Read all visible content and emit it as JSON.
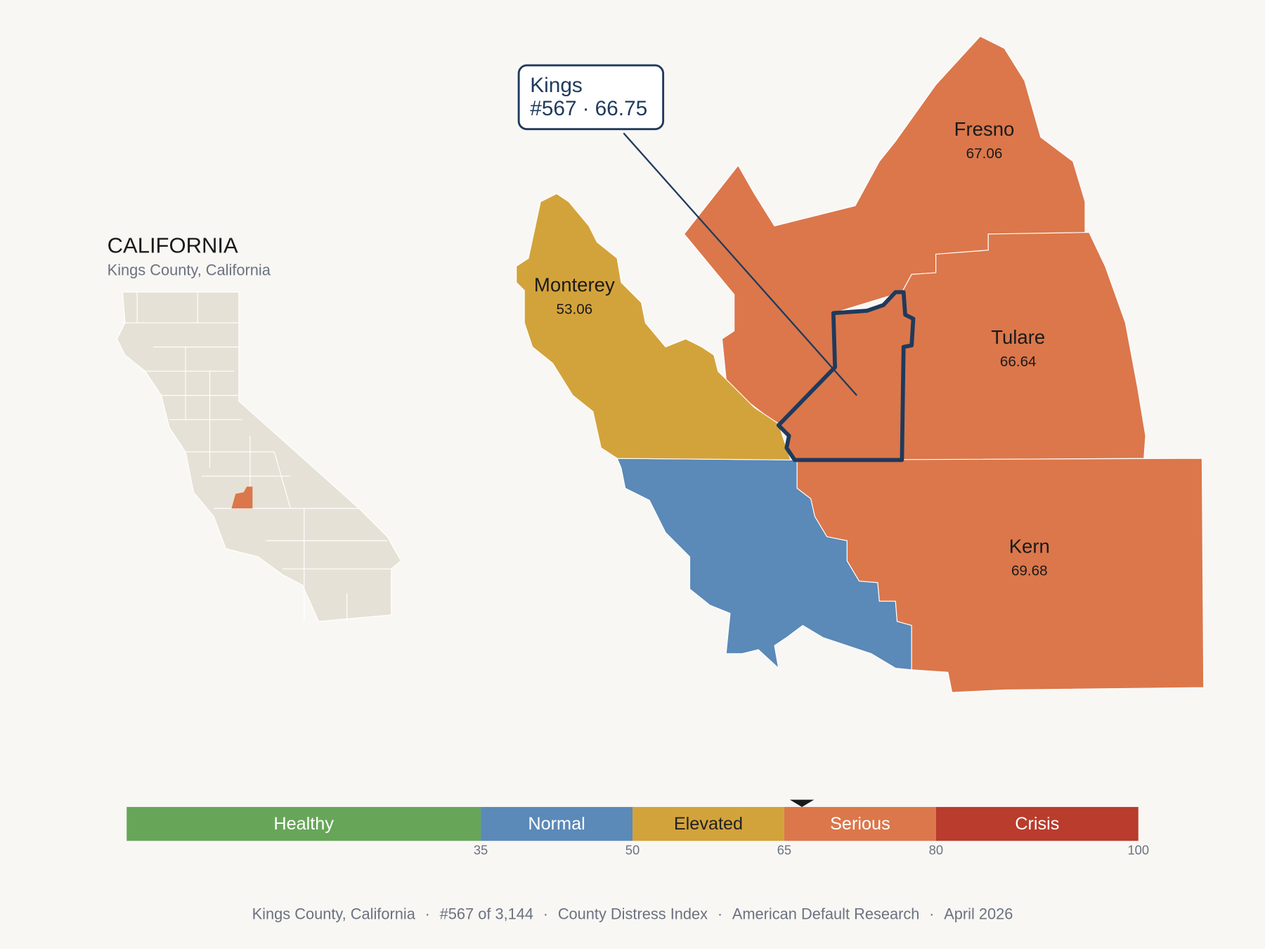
{
  "inset": {
    "title": "CALIFORNIA",
    "subtitle": "Kings County, California"
  },
  "counties": [
    {
      "name": "Fresno",
      "value": 67.06
    },
    {
      "name": "Tulare",
      "value": 66.64
    },
    {
      "name": "Kern",
      "value": 69.68
    },
    {
      "name": "Monterey",
      "value": 53.06
    }
  ],
  "selected": {
    "name": "Kings",
    "rank": "#567",
    "separator": "·",
    "value": 66.75,
    "outline_color": "#1f3a5c"
  },
  "legend": {
    "lim": [
      0,
      100
    ],
    "ticks": [
      35,
      50,
      65,
      80,
      100
    ],
    "bands": [
      {
        "label": "Healthy",
        "color": "#67a659",
        "text_color": "#ffffff"
      },
      {
        "label": "Normal",
        "color": "#5b89b8",
        "text_color": "#ffffff"
      },
      {
        "label": "Elevated",
        "color": "#d3a33b",
        "text_color": "#222222"
      },
      {
        "label": "Serious",
        "color": "#db774b",
        "text_color": "#ffffff"
      },
      {
        "label": "Crisis",
        "color": "#b93c2d",
        "text_color": "#ffffff"
      }
    ]
  },
  "footer": {
    "items": [
      "Kings County, California",
      "#567 of 3,144",
      "County Distress Index",
      "American Default Research",
      "April 2026"
    ],
    "separator": "·"
  }
}
